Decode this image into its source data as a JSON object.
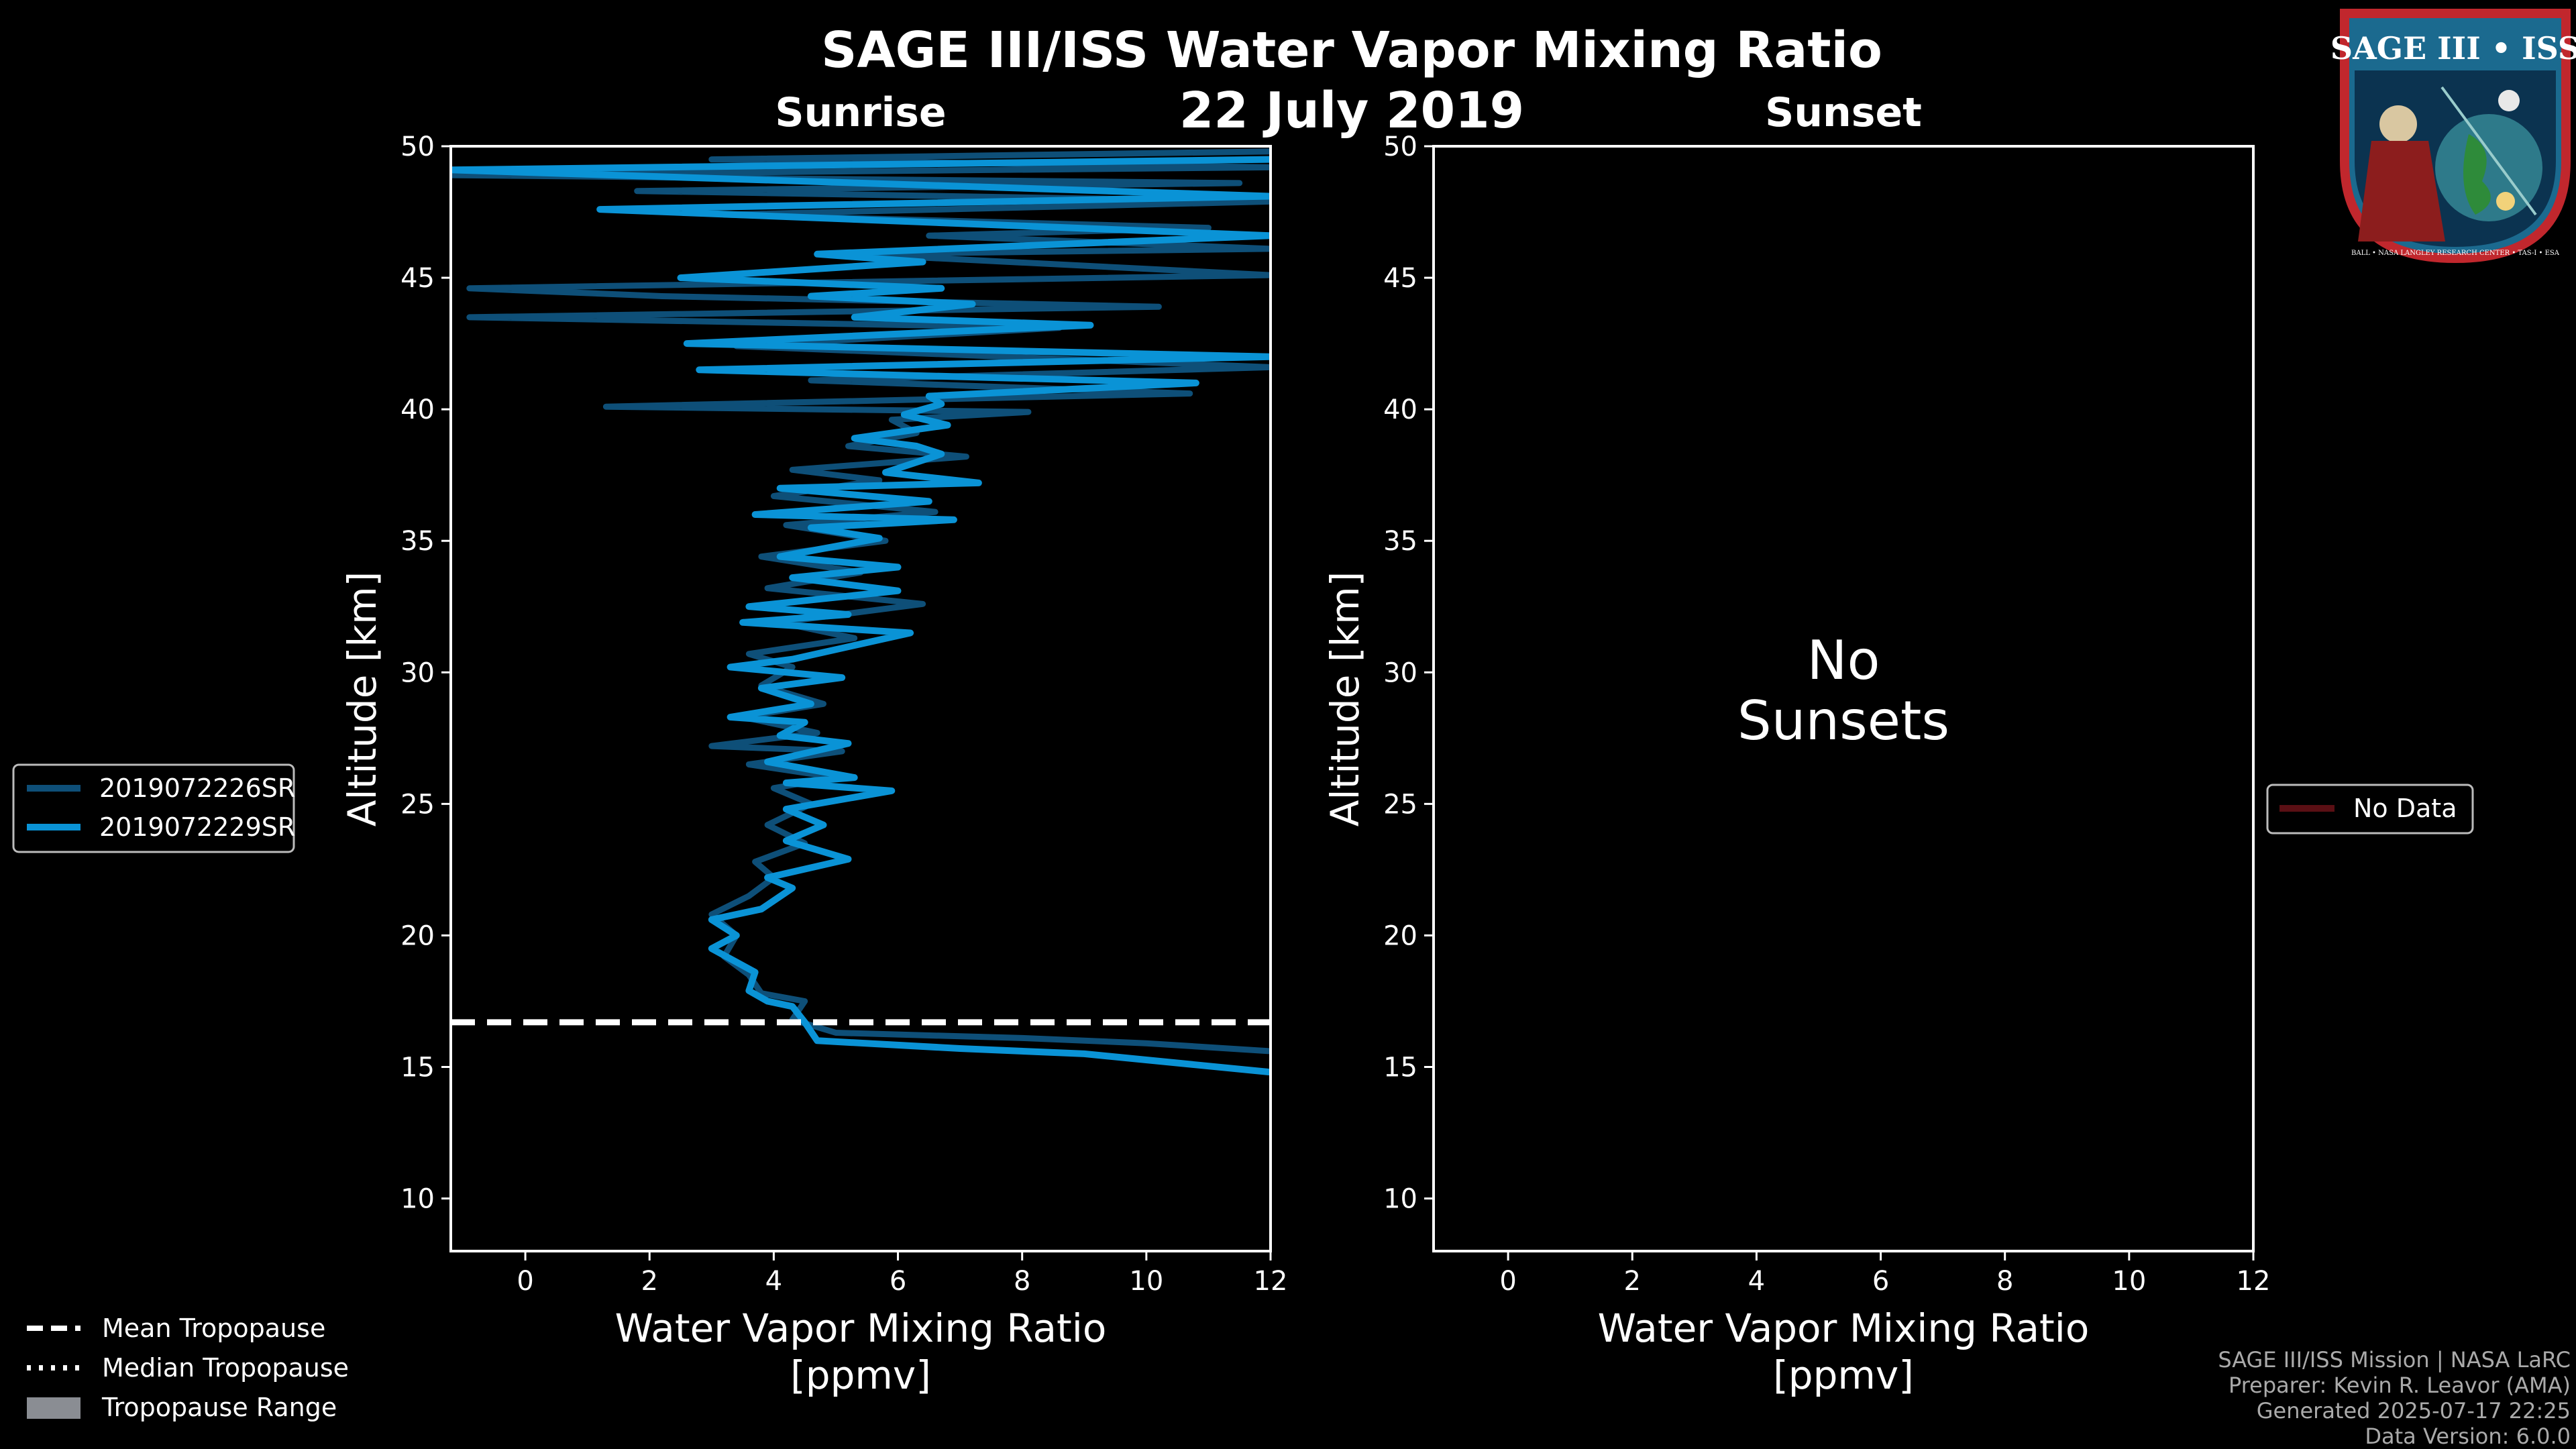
{
  "figure": {
    "title": "SAGE III/ISS Water Vapor Mixing Ratio",
    "date": "22 July 2019"
  },
  "logo": {
    "text": "SAGE III • ISS",
    "ring_text": "BALL • NASA LANGLEY RESEARCH CENTER • TAS-I • ESA"
  },
  "legend_left": {
    "items": [
      "Mean Tropopause",
      "Median Tropopause",
      "Tropopause Range"
    ]
  },
  "footer": {
    "line1": "SAGE III/ISS Mission | NASA LaRC",
    "line2": "Preparer: Kevin R. Leavor (AMA)",
    "line3": "Generated 2025-07-17 22:25",
    "line4": "Data Version: 6.0.0"
  },
  "colors": {
    "series_dark": "#0e4f78",
    "series_light": "#0a93d6",
    "no_data": "#5a0f14",
    "tropopause": "#ffffff"
  },
  "chart_data": [
    {
      "type": "line",
      "title": "Sunrise",
      "xlabel": "Water Vapor Mixing Ratio",
      "xlabel2": "[ppmv]",
      "ylabel": "Altitude [km]",
      "xlim": [
        -1.2,
        12
      ],
      "ylim": [
        8,
        50
      ],
      "xticks": [
        0,
        2,
        4,
        6,
        8,
        10,
        12
      ],
      "yticks": [
        10,
        15,
        20,
        25,
        30,
        35,
        40,
        45,
        50
      ],
      "mean_tropopause_km": 16.7,
      "series": [
        {
          "name": "2019072226SR",
          "color": "#0e4f78",
          "points": [
            [
              12,
              15.6
            ],
            [
              10,
              15.9
            ],
            [
              8,
              16.1
            ],
            [
              5,
              16.3
            ],
            [
              4.3,
              16.8
            ],
            [
              4.5,
              17.5
            ],
            [
              3.8,
              17.8
            ],
            [
              3.6,
              18.5
            ],
            [
              3.2,
              19.2
            ],
            [
              3.4,
              20.0
            ],
            [
              3.0,
              20.8
            ],
            [
              3.6,
              21.5
            ],
            [
              4.0,
              22.2
            ],
            [
              3.7,
              22.8
            ],
            [
              4.5,
              23.5
            ],
            [
              3.9,
              24.2
            ],
            [
              4.6,
              25.0
            ],
            [
              4.0,
              25.6
            ],
            [
              5.0,
              26.0
            ],
            [
              3.6,
              26.5
            ],
            [
              5.1,
              27.0
            ],
            [
              3.0,
              27.2
            ],
            [
              4.7,
              27.7
            ],
            [
              3.5,
              28.3
            ],
            [
              4.8,
              28.8
            ],
            [
              3.8,
              29.5
            ],
            [
              4.3,
              30.2
            ],
            [
              3.6,
              30.7
            ],
            [
              5.3,
              31.3
            ],
            [
              4.1,
              31.9
            ],
            [
              6.4,
              32.6
            ],
            [
              3.9,
              33.2
            ],
            [
              5.4,
              33.8
            ],
            [
              3.8,
              34.4
            ],
            [
              5.8,
              35.0
            ],
            [
              4.2,
              35.6
            ],
            [
              6.6,
              36.1
            ],
            [
              4.0,
              36.7
            ],
            [
              5.7,
              37.3
            ],
            [
              4.3,
              37.7
            ],
            [
              7.1,
              38.2
            ],
            [
              5.2,
              38.6
            ],
            [
              6.3,
              39.1
            ],
            [
              5.9,
              39.6
            ],
            [
              8.1,
              39.9
            ],
            [
              1.3,
              40.1
            ],
            [
              10.7,
              40.6
            ],
            [
              4.6,
              41.1
            ],
            [
              12,
              41.6
            ],
            [
              3.4,
              42.4
            ],
            [
              8.6,
              43.1
            ],
            [
              -0.9,
              43.5
            ],
            [
              10.2,
              43.9
            ],
            [
              2.2,
              44.3
            ],
            [
              -0.9,
              44.6
            ],
            [
              12,
              45.1
            ],
            [
              5.3,
              45.9
            ],
            [
              12,
              46.1
            ],
            [
              6.5,
              46.6
            ],
            [
              11,
              46.9
            ],
            [
              3.2,
              47.4
            ],
            [
              12,
              47.9
            ],
            [
              1.8,
              48.3
            ],
            [
              11.5,
              48.6
            ],
            [
              -1.2,
              48.9
            ],
            [
              12,
              49.2
            ],
            [
              3.0,
              49.5
            ],
            [
              12,
              49.8
            ]
          ]
        },
        {
          "name": "2019072229SR",
          "color": "#0a93d6",
          "points": [
            [
              12,
              14.8
            ],
            [
              9,
              15.5
            ],
            [
              7,
              15.7
            ],
            [
              4.7,
              16.0
            ],
            [
              4.5,
              16.7
            ],
            [
              4.3,
              17.3
            ],
            [
              3.9,
              17.5
            ],
            [
              3.6,
              17.9
            ],
            [
              3.7,
              18.6
            ],
            [
              3.0,
              19.5
            ],
            [
              3.4,
              20.0
            ],
            [
              3.0,
              20.6
            ],
            [
              3.8,
              21.0
            ],
            [
              4.3,
              21.8
            ],
            [
              3.9,
              22.2
            ],
            [
              5.2,
              22.9
            ],
            [
              4.2,
              23.6
            ],
            [
              4.8,
              24.2
            ],
            [
              4.2,
              24.8
            ],
            [
              5.9,
              25.5
            ],
            [
              4.2,
              25.8
            ],
            [
              5.3,
              26.0
            ],
            [
              3.9,
              26.6
            ],
            [
              5.2,
              27.3
            ],
            [
              4.1,
              27.6
            ],
            [
              4.5,
              28.1
            ],
            [
              3.3,
              28.3
            ],
            [
              4.6,
              28.8
            ],
            [
              3.8,
              29.4
            ],
            [
              5.1,
              29.8
            ],
            [
              3.3,
              30.2
            ],
            [
              4.3,
              30.5
            ],
            [
              6.2,
              31.5
            ],
            [
              3.5,
              31.9
            ],
            [
              5.2,
              32.2
            ],
            [
              3.6,
              32.5
            ],
            [
              6.0,
              33.1
            ],
            [
              4.3,
              33.6
            ],
            [
              6.0,
              34.0
            ],
            [
              4.1,
              34.4
            ],
            [
              5.7,
              35.1
            ],
            [
              4.6,
              35.5
            ],
            [
              6.9,
              35.8
            ],
            [
              3.7,
              36.0
            ],
            [
              6.5,
              36.5
            ],
            [
              4.1,
              37.0
            ],
            [
              7.3,
              37.2
            ],
            [
              5.8,
              37.6
            ],
            [
              6.7,
              38.3
            ],
            [
              6.3,
              38.6
            ],
            [
              5.3,
              38.9
            ],
            [
              6.8,
              39.4
            ],
            [
              6.1,
              39.8
            ],
            [
              6.7,
              40.2
            ],
            [
              6.5,
              40.5
            ],
            [
              10.8,
              41.0
            ],
            [
              2.8,
              41.5
            ],
            [
              12,
              42.0
            ],
            [
              2.6,
              42.5
            ],
            [
              9.1,
              43.2
            ],
            [
              5.3,
              43.5
            ],
            [
              7.2,
              44.0
            ],
            [
              4.6,
              44.3
            ],
            [
              6.7,
              44.6
            ],
            [
              2.5,
              45.0
            ],
            [
              6.4,
              45.6
            ],
            [
              4.7,
              45.9
            ],
            [
              12,
              46.6
            ],
            [
              1.2,
              47.6
            ],
            [
              12,
              48.1
            ],
            [
              -1.2,
              49.1
            ],
            [
              12,
              49.5
            ]
          ]
        }
      ]
    },
    {
      "type": "line",
      "title": "Sunset",
      "xlabel": "Water Vapor Mixing Ratio",
      "xlabel2": "[ppmv]",
      "ylabel": "Altitude [km]",
      "xlim": [
        -1.2,
        12
      ],
      "ylim": [
        8,
        50
      ],
      "xticks": [
        0,
        2,
        4,
        6,
        8,
        10,
        12
      ],
      "yticks": [
        10,
        15,
        20,
        25,
        30,
        35,
        40,
        45,
        50
      ],
      "message_line1": "No",
      "message_line2": "Sunsets",
      "series": [],
      "legend": [
        "No Data"
      ]
    }
  ]
}
